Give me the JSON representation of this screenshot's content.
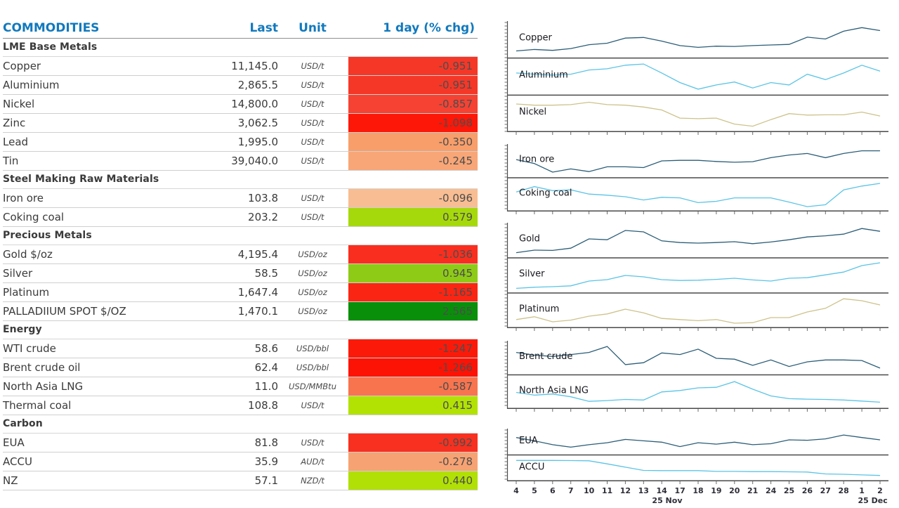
{
  "table": {
    "headers": {
      "commodity": "COMMODITIES",
      "last": "Last",
      "unit": "Unit",
      "change": "1 day (% chg)"
    },
    "header_color": "#1179bd",
    "sections": [
      {
        "title": "LME Base Metals",
        "rows": [
          {
            "name": "Copper",
            "last": "11,145.0",
            "unit": "USD/t",
            "change": "-0.951",
            "change_bg": "#f53728"
          },
          {
            "name": "Aluminium",
            "last": "2,865.5",
            "unit": "USD/t",
            "change": "-0.951",
            "change_bg": "#f53728"
          },
          {
            "name": "Nickel",
            "last": "14,800.0",
            "unit": "USD/t",
            "change": "-0.857",
            "change_bg": "#f54233"
          },
          {
            "name": "Zinc",
            "last": "3,062.5",
            "unit": "USD/t",
            "change": "-1.098",
            "change_bg": "#fc1708"
          },
          {
            "name": "Lead",
            "last": "1,995.0",
            "unit": "USD/t",
            "change": "-0.350",
            "change_bg": "#f79e6b"
          },
          {
            "name": "Tin",
            "last": "39,040.0",
            "unit": "USD/t",
            "change": "-0.245",
            "change_bg": "#f8a677"
          }
        ]
      },
      {
        "title": "Steel Making Raw Materials",
        "rows": [
          {
            "name": "Iron ore",
            "last": "103.8",
            "unit": "USD/t",
            "change": "-0.096",
            "change_bg": "#f8bd92"
          },
          {
            "name": "Coking coal",
            "last": "203.2",
            "unit": "USD/t",
            "change": "0.579",
            "change_bg": "#a6d90b"
          }
        ]
      },
      {
        "title": "Precious Metals",
        "rows": [
          {
            "name": "Gold $/oz",
            "last": "4,195.4",
            "unit": "USD/oz",
            "change": "-1.036",
            "change_bg": "#f92e1e"
          },
          {
            "name": "Silver",
            "last": "58.5",
            "unit": "USD/oz",
            "change": "0.945",
            "change_bg": "#8ecb17"
          },
          {
            "name": "Platinum",
            "last": "1,647.4",
            "unit": "USD/oz",
            "change": "-1.165",
            "change_bg": "#fa2513"
          },
          {
            "name": "PALLADIIUM SPOT $/OZ",
            "last": "1,470.1",
            "unit": "USD/oz",
            "change": "2.565",
            "change_bg": "#0a8f0a"
          }
        ]
      },
      {
        "title": "Energy",
        "rows": [
          {
            "name": "WTI crude",
            "last": "58.6",
            "unit": "USD/bbl",
            "change": "-1.247",
            "change_bg": "#fb1a0a"
          },
          {
            "name": "Brent crude oil",
            "last": "62.4",
            "unit": "USD/bbl",
            "change": "-1.266",
            "change_bg": "#fc1305"
          },
          {
            "name": "North Asia LNG",
            "last": "11.0",
            "unit": "USD/MMBtu",
            "change": "-0.587",
            "change_bg": "#f7744e"
          },
          {
            "name": "Thermal coal",
            "last": "108.8",
            "unit": "USD/t",
            "change": "0.415",
            "change_bg": "#b2e204"
          }
        ]
      },
      {
        "title": "Carbon",
        "rows": [
          {
            "name": "EUA",
            "last": "81.8",
            "unit": "USD/t",
            "change": "-0.992",
            "change_bg": "#f8301f"
          },
          {
            "name": "ACCU",
            "last": "35.9",
            "unit": "AUD/t",
            "change": "-0.278",
            "change_bg": "#f7a273"
          },
          {
            "name": "NZ",
            "last": "57.1",
            "unit": "NZD/t",
            "change": "0.440",
            "change_bg": "#b0e005"
          }
        ]
      }
    ]
  },
  "chart_data": {
    "type": "line",
    "note": "sparkline panels; no numeric y axis shown, values are percent of panel height from bottom",
    "x_labels": [
      "4",
      "5",
      "6",
      "7",
      "10",
      "11",
      "12",
      "13",
      "14",
      "17",
      "18",
      "19",
      "20",
      "21",
      "24",
      "25",
      "26",
      "27",
      "28",
      "1",
      "2"
    ],
    "x_month_labels": [
      {
        "text": "25 Nov",
        "at_index": 8.3
      },
      {
        "text": "25 Dec",
        "at_index": 19.6
      }
    ],
    "line_colors": {
      "dark": "#2b5d78",
      "light": "#5bc4e6",
      "tan": "#cdc28a"
    },
    "axis_color": "#4a4a4a",
    "groups": [
      {
        "name": "lme-base-metals",
        "series": [
          {
            "label": "Copper",
            "color": "#2b5d78",
            "values": [
              12,
              17,
              14,
              20,
              33,
              38,
              55,
              57,
              45,
              30,
              24,
              28,
              27,
              30,
              32,
              34,
              58,
              52,
              78,
              90,
              80
            ]
          },
          {
            "label": "Aluminium",
            "color": "#5bc4e6",
            "values": [
              62,
              58,
              55,
              58,
              72,
              76,
              88,
              92,
              62,
              30,
              8,
              22,
              32,
              12,
              30,
              22,
              58,
              40,
              62,
              88,
              68
            ]
          },
          {
            "label": "Nickel",
            "color": "#cdc28a",
            "values": [
              82,
              78,
              78,
              80,
              88,
              80,
              78,
              72,
              62,
              35,
              33,
              35,
              15,
              8,
              30,
              50,
              45,
              46,
              46,
              55,
              42
            ]
          }
        ]
      },
      {
        "name": "steel-raw-materials",
        "series": [
          {
            "label": "Iron ore",
            "color": "#2b5d78",
            "values": [
              55,
              40,
              8,
              20,
              10,
              28,
              28,
              25,
              50,
              52,
              52,
              48,
              45,
              47,
              62,
              72,
              78,
              62,
              78,
              88,
              88
            ]
          },
          {
            "label": "Coking coal",
            "color": "#5bc4e6",
            "values": [
              60,
              80,
              65,
              68,
              52,
              48,
              42,
              30,
              40,
              38,
              20,
              25,
              38,
              38,
              38,
              22,
              5,
              12,
              68,
              82,
              92
            ]
          }
        ]
      },
      {
        "name": "precious-metals",
        "series": [
          {
            "label": "Gold",
            "color": "#2b5d78",
            "values": [
              6,
              15,
              14,
              22,
              55,
              52,
              85,
              80,
              48,
              42,
              40,
              42,
              45,
              38,
              44,
              52,
              62,
              66,
              72,
              92,
              82
            ]
          },
          {
            "label": "Silver",
            "color": "#5bc4e6",
            "values": [
              4,
              8,
              10,
              13,
              30,
              35,
              50,
              45,
              35,
              32,
              33,
              36,
              40,
              34,
              30,
              40,
              42,
              52,
              62,
              85,
              95
            ]
          },
          {
            "label": "Platinum",
            "color": "#cdc28a",
            "values": [
              18,
              28,
              10,
              16,
              30,
              38,
              55,
              42,
              22,
              18,
              14,
              18,
              5,
              7,
              25,
              25,
              45,
              58,
              92,
              85,
              70
            ]
          }
        ]
      },
      {
        "name": "energy",
        "series": [
          {
            "label": "Brent crude",
            "color": "#2b5d78",
            "values": [
              70,
              60,
              55,
              62,
              70,
              92,
              25,
              32,
              68,
              62,
              82,
              48,
              45,
              22,
              42,
              18,
              35,
              42,
              42,
              40,
              12
            ]
          },
          {
            "label": "North Asia LNG",
            "color": "#5bc4e6",
            "values": [
              48,
              38,
              42,
              32,
              15,
              18,
              22,
              20,
              50,
              55,
              65,
              67,
              88,
              60,
              35,
              25,
              23,
              22,
              20,
              16,
              12
            ]
          }
        ]
      },
      {
        "name": "carbon",
        "series": [
          {
            "label": "EUA",
            "color": "#2b5d78",
            "values": [
              72,
              55,
              35,
              22,
              35,
              45,
              62,
              55,
              48,
              25,
              45,
              38,
              48,
              35,
              40,
              60,
              58,
              65,
              85,
              72,
              60
            ]
          },
          {
            "label": "ACCU",
            "color": "#5bc4e6",
            "values": [
              90,
              90,
              90,
              89,
              88,
              72,
              55,
              38,
              37,
              37,
              37,
              33,
              33,
              32,
              32,
              31,
              30,
              20,
              18,
              15,
              12
            ]
          }
        ]
      }
    ]
  }
}
